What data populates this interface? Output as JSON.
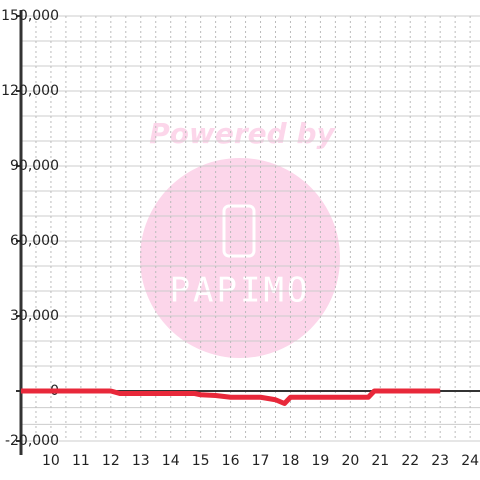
{
  "chart_data": {
    "type": "line",
    "x": [
      9,
      12,
      12.3,
      14.8,
      15,
      15.5,
      16,
      17,
      17.5,
      17.8,
      18,
      20,
      20.6,
      20.8,
      23
    ],
    "series": [
      {
        "color": "#e8283a",
        "values": [
          0,
          0,
          -1000,
          -1000,
          -1500,
          -1800,
          -2500,
          -2500,
          -3500,
          -5000,
          -2500,
          -2500,
          -2500,
          0,
          0
        ]
      }
    ],
    "xlim": [
      9,
      24.33
    ],
    "xticks": [
      10,
      11,
      12,
      13,
      14,
      15,
      16,
      17,
      18,
      19,
      20,
      21,
      22,
      23,
      24
    ],
    "ylim": [
      -20000,
      150000
    ],
    "yticks": [
      {
        "value": -20000,
        "label": "-20,000"
      },
      {
        "value": 0,
        "label": "0"
      },
      {
        "value": 30000,
        "label": "30,000"
      },
      {
        "value": 60000,
        "label": "60,000"
      },
      {
        "value": 90000,
        "label": "90,000"
      },
      {
        "value": 120000,
        "label": "120,000"
      },
      {
        "value": 150000,
        "label": "150,000"
      }
    ],
    "grid": true,
    "watermark": {
      "text": "Powered by",
      "logo": "PAPIMO"
    }
  }
}
